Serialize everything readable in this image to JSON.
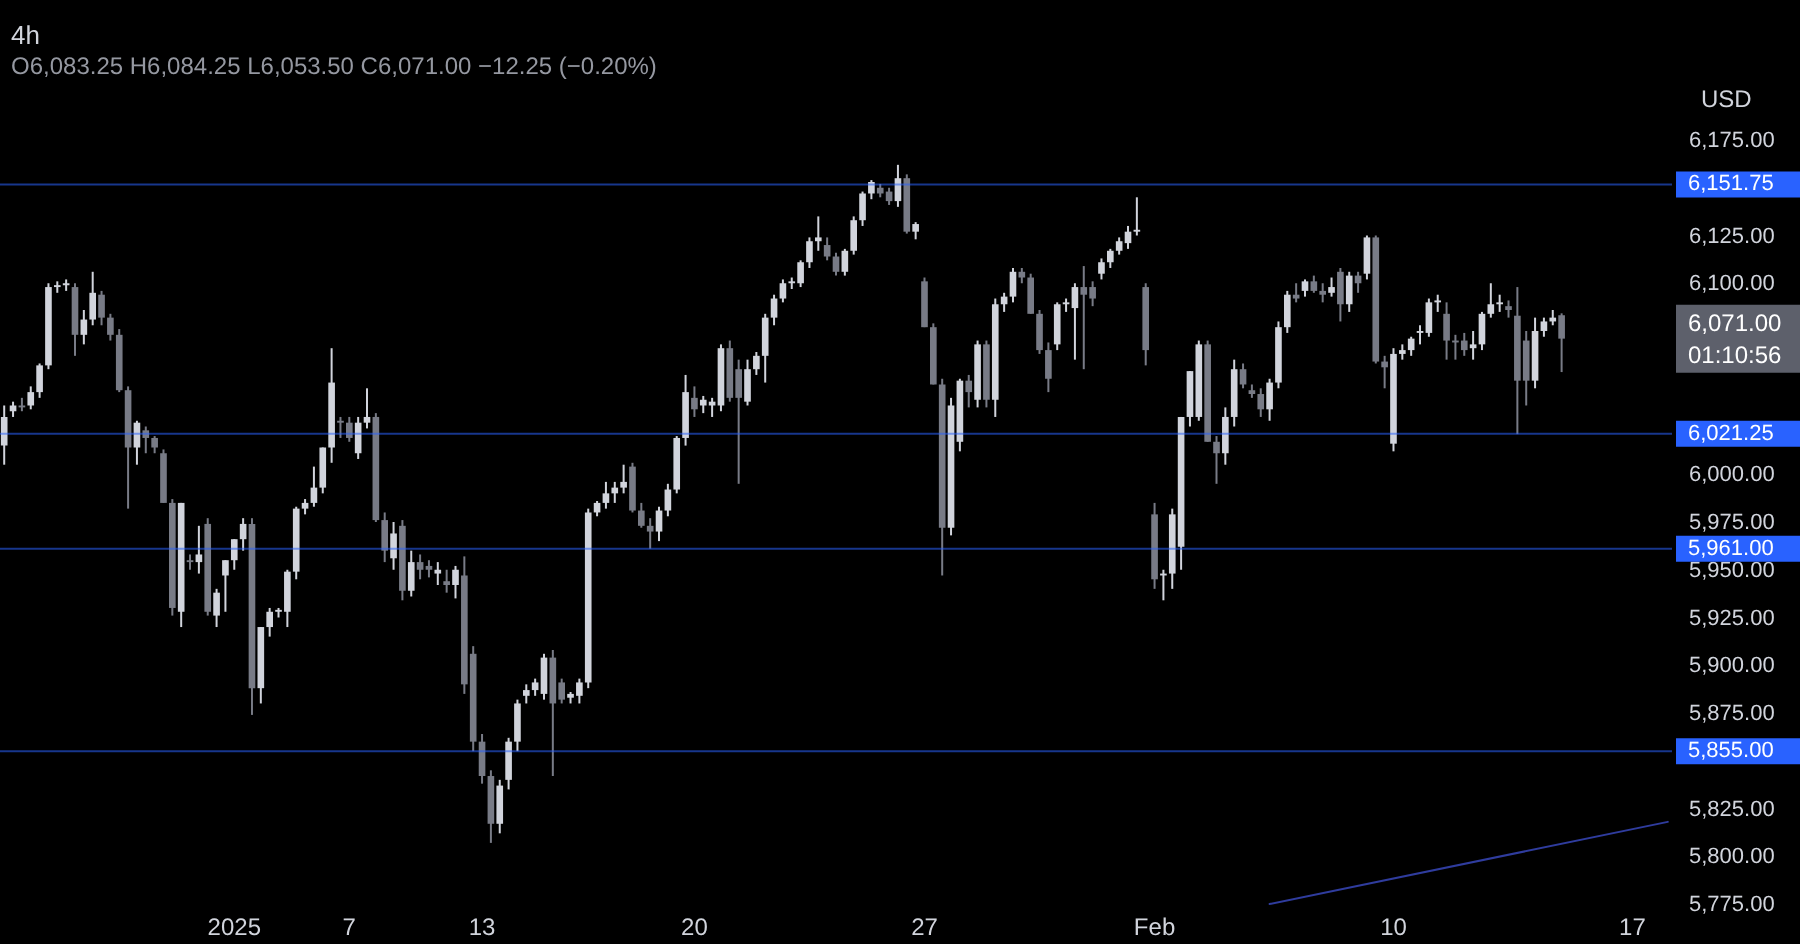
{
  "chart_data": {
    "type": "candlestick",
    "title": "4h",
    "subtitle": "O6,083.25 H6,084.25 L6,053.50 C6,071.00 −12.25 (−0.20%)",
    "ylabel": "USD",
    "categories": [
      null,
      null,
      null,
      null,
      null,
      null,
      null,
      null,
      null,
      null,
      null,
      null,
      null,
      null,
      null,
      null,
      null,
      null,
      null,
      null,
      null,
      null,
      null,
      null,
      null,
      null,
      "2025",
      null,
      null,
      null,
      null,
      null,
      null,
      null,
      null,
      null,
      null,
      null,
      null,
      "7",
      null,
      null,
      null,
      null,
      null,
      null,
      null,
      null,
      null,
      null,
      null,
      null,
      null,
      null,
      "13",
      null,
      null,
      null,
      null,
      null,
      null,
      null,
      null,
      null,
      null,
      null,
      null,
      null,
      null,
      null,
      null,
      null,
      null,
      null,
      null,
      null,
      null,
      null,
      "20",
      null,
      null,
      null,
      null,
      null,
      null,
      null,
      null,
      null,
      null,
      null,
      null,
      null,
      null,
      null,
      null,
      null,
      null,
      null,
      null,
      null,
      null,
      null,
      null,
      null,
      "27",
      null,
      null,
      null,
      null,
      null,
      null,
      null,
      null,
      null,
      null,
      null,
      null,
      null,
      null,
      null,
      null,
      null,
      null,
      null,
      null,
      null,
      null,
      null,
      null,
      null,
      "Feb",
      null,
      null,
      null,
      null,
      null,
      null,
      null,
      null,
      null,
      null,
      null,
      null,
      null,
      null,
      null,
      null,
      null,
      null,
      null,
      null,
      null,
      null,
      null,
      null,
      null,
      null,
      "10",
      null,
      null,
      null,
      null,
      null,
      null,
      null,
      null,
      null,
      null,
      null,
      null,
      null,
      null,
      null,
      null,
      null,
      null,
      null,
      null,
      null,
      null,
      null,
      null,
      null,
      null,
      "17",
      null,
      null,
      null,
      null
    ],
    "ohlc": [
      [
        6015,
        6036,
        6005,
        6030
      ],
      [
        6033,
        6038,
        6030,
        6036
      ],
      [
        6036,
        6040,
        6033,
        6035
      ],
      [
        6036,
        6046,
        6034,
        6043
      ],
      [
        6043,
        6058,
        6040,
        6057
      ],
      [
        6057,
        6100,
        6055,
        6098
      ],
      [
        6098,
        6101,
        6095,
        6099
      ],
      [
        6099,
        6102,
        6096,
        6100
      ],
      [
        6098,
        6100,
        6062,
        6073
      ],
      [
        6073,
        6086,
        6068,
        6081
      ],
      [
        6081,
        6106,
        6078,
        6095
      ],
      [
        6094,
        6096,
        6078,
        6082
      ],
      [
        6082,
        6084,
        6070,
        6073
      ],
      [
        6073,
        6076,
        6043,
        6044
      ],
      [
        6044,
        6046,
        5982,
        6014
      ],
      [
        6014,
        6028,
        6005,
        6027
      ],
      [
        6023,
        6025,
        6011,
        6019
      ],
      [
        6019,
        6020,
        6011,
        6014
      ],
      [
        6011,
        6013,
        5985,
        5985
      ],
      [
        5985,
        5987,
        5926,
        5930
      ],
      [
        5928,
        5985,
        5920,
        5985
      ],
      [
        5955,
        5958,
        5950,
        5954
      ],
      [
        5954,
        5973,
        5948,
        5958
      ],
      [
        5974,
        5977,
        5926,
        5928
      ],
      [
        5926,
        5940,
        5920,
        5938
      ],
      [
        5947,
        5955,
        5928,
        5955
      ],
      [
        5955,
        5966,
        5950,
        5966
      ],
      [
        5966,
        5977,
        5960,
        5974
      ],
      [
        5974,
        5977,
        5874,
        5888
      ],
      [
        5888,
        5920,
        5880,
        5920
      ],
      [
        5920,
        5930,
        5915,
        5928
      ],
      [
        5928,
        5930,
        5925,
        5929
      ],
      [
        5928,
        5950,
        5920,
        5949
      ],
      [
        5949,
        5983,
        5945,
        5982
      ],
      [
        5982,
        5987,
        5979,
        5985
      ],
      [
        5985,
        6004,
        5983,
        5993
      ],
      [
        5993,
        6014,
        5990,
        6014
      ],
      [
        6014,
        6066,
        6006,
        6048
      ],
      [
        6028,
        6030,
        6019,
        6027
      ],
      [
        6027,
        6030,
        6017,
        6019
      ],
      [
        6011,
        6030,
        6008,
        6027
      ],
      [
        6027,
        6045,
        6024,
        6030
      ],
      [
        6030,
        6032,
        5975,
        5976
      ],
      [
        5976,
        5980,
        5954,
        5960
      ],
      [
        5956,
        5975,
        5950,
        5969
      ],
      [
        5973,
        5976,
        5934,
        5939
      ],
      [
        5939,
        5960,
        5936,
        5954
      ],
      [
        5954,
        5958,
        5945,
        5950
      ],
      [
        5952,
        5955,
        5946,
        5950
      ],
      [
        5948,
        5954,
        5942,
        5950
      ],
      [
        5944,
        5950,
        5938,
        5942
      ],
      [
        5942,
        5952,
        5935,
        5950
      ],
      [
        5947,
        5957,
        5885,
        5890
      ],
      [
        5906,
        5910,
        5855,
        5860
      ],
      [
        5860,
        5864,
        5838,
        5842
      ],
      [
        5842,
        5845,
        5807,
        5817
      ],
      [
        5817,
        5840,
        5812,
        5837
      ],
      [
        5840,
        5862,
        5835,
        5860
      ],
      [
        5860,
        5882,
        5855,
        5880
      ],
      [
        5884,
        5890,
        5880,
        5887
      ],
      [
        5887,
        5893,
        5884,
        5891
      ],
      [
        5885,
        5906,
        5882,
        5904
      ],
      [
        5904,
        5908,
        5842,
        5880
      ],
      [
        5891,
        5893,
        5880,
        5882
      ],
      [
        5883,
        5886,
        5880,
        5885
      ],
      [
        5884,
        5893,
        5880,
        5891
      ],
      [
        5891,
        5982,
        5888,
        5980
      ],
      [
        5980,
        5986,
        5978,
        5985
      ],
      [
        5985,
        5996,
        5982,
        5990
      ],
      [
        5990,
        5996,
        5985,
        5993
      ],
      [
        5993,
        6005,
        5990,
        5996
      ],
      [
        6004,
        6006,
        5980,
        5981
      ],
      [
        5981,
        5985,
        5972,
        5973
      ],
      [
        5973,
        5977,
        5961,
        5970
      ],
      [
        5970,
        5983,
        5965,
        5981
      ],
      [
        5981,
        5995,
        5978,
        5992
      ],
      [
        5992,
        6020,
        5990,
        6019
      ],
      [
        6019,
        6052,
        6015,
        6043
      ],
      [
        6040,
        6046,
        6030,
        6034
      ],
      [
        6036,
        6041,
        6032,
        6039
      ],
      [
        6036,
        6040,
        6030,
        6038
      ],
      [
        6036,
        6068,
        6033,
        6066
      ],
      [
        6066,
        6070,
        6038,
        6040
      ],
      [
        6055,
        6060,
        5995,
        6040
      ],
      [
        6038,
        6060,
        6036,
        6055
      ],
      [
        6055,
        6064,
        6052,
        6062
      ],
      [
        6062,
        6084,
        6048,
        6082
      ],
      [
        6082,
        6094,
        6078,
        6092
      ],
      [
        6092,
        6102,
        6090,
        6100
      ],
      [
        6100,
        6103,
        6097,
        6101
      ],
      [
        6100,
        6112,
        6098,
        6111
      ],
      [
        6111,
        6124,
        6108,
        6122
      ],
      [
        6122,
        6135,
        6117,
        6124
      ],
      [
        6120,
        6124,
        6112,
        6114
      ],
      [
        6114,
        6116,
        6104,
        6106
      ],
      [
        6106,
        6118,
        6104,
        6117
      ],
      [
        6117,
        6135,
        6115,
        6133
      ],
      [
        6133,
        6148,
        6130,
        6147
      ],
      [
        6147,
        6154,
        6144,
        6153
      ],
      [
        6150,
        6152,
        6145,
        6147
      ],
      [
        6148,
        6150,
        6141,
        6143
      ],
      [
        6143,
        6162,
        6140,
        6155
      ],
      [
        6155,
        6157,
        6126,
        6127
      ],
      [
        6127,
        6132,
        6123,
        6131
      ],
      [
        6101,
        6103,
        6077,
        6077
      ],
      [
        6077,
        6079,
        6047,
        6047
      ],
      [
        6047,
        6050,
        5947,
        5972
      ],
      [
        5972,
        6040,
        5968,
        6036
      ],
      [
        6017,
        6050,
        6012,
        6049
      ],
      [
        6049,
        6052,
        6035,
        6043
      ],
      [
        6039,
        6070,
        6035,
        6068
      ],
      [
        6068,
        6070,
        6035,
        6039
      ],
      [
        6039,
        6092,
        6030,
        6089
      ],
      [
        6089,
        6095,
        6085,
        6093
      ],
      [
        6093,
        6108,
        6090,
        6106
      ],
      [
        6106,
        6108,
        6100,
        6103
      ],
      [
        6103,
        6105,
        6084,
        6084
      ],
      [
        6084,
        6086,
        6063,
        6065
      ],
      [
        6065,
        6069,
        6043,
        6050
      ],
      [
        6068,
        6090,
        6065,
        6089
      ],
      [
        6089,
        6092,
        6085,
        6090
      ],
      [
        6087,
        6100,
        6060,
        6098
      ],
      [
        6098,
        6109,
        6055,
        6094
      ],
      [
        6098,
        6101,
        6088,
        6092
      ],
      [
        6105,
        6113,
        6102,
        6111
      ],
      [
        6111,
        6118,
        6108,
        6117
      ],
      [
        6117,
        6124,
        6115,
        6122
      ],
      [
        6121,
        6130,
        6118,
        6127
      ],
      [
        6127,
        6145,
        6125,
        6128
      ],
      [
        6098,
        6100,
        6057,
        6065
      ],
      [
        5979,
        5985,
        5940,
        5945
      ],
      [
        5947,
        5950,
        5934,
        5948
      ],
      [
        5948,
        5982,
        5940,
        5979
      ],
      [
        5962,
        6030,
        5950,
        6030
      ],
      [
        6030,
        6054,
        6025,
        6054
      ],
      [
        6030,
        6070,
        6028,
        6068
      ],
      [
        6068,
        6070,
        6017,
        6017
      ],
      [
        6017,
        6020,
        5995,
        6011
      ],
      [
        6011,
        6035,
        6005,
        6030
      ],
      [
        6030,
        6060,
        6025,
        6055
      ],
      [
        6055,
        6058,
        6045,
        6047
      ],
      [
        6044,
        6047,
        6040,
        6042
      ],
      [
        6042,
        6045,
        6030,
        6034
      ],
      [
        6034,
        6050,
        6028,
        6048
      ],
      [
        6048,
        6080,
        6045,
        6077
      ],
      [
        6077,
        6096,
        6074,
        6094
      ],
      [
        6094,
        6100,
        6090,
        6092
      ],
      [
        6096,
        6102,
        6093,
        6101
      ],
      [
        6101,
        6104,
        6095,
        6096
      ],
      [
        6096,
        6100,
        6090,
        6094
      ],
      [
        6095,
        6103,
        6093,
        6098
      ],
      [
        6106,
        6108,
        6080,
        6089
      ],
      [
        6089,
        6106,
        6085,
        6104
      ],
      [
        6104,
        6106,
        6095,
        6100
      ],
      [
        6105,
        6125,
        6102,
        6124
      ],
      [
        6124,
        6125,
        6058,
        6059
      ],
      [
        6059,
        6062,
        6045,
        6056
      ],
      [
        6016,
        6066,
        6012,
        6063
      ],
      [
        6063,
        6068,
        6060,
        6065
      ],
      [
        6065,
        6072,
        6062,
        6071
      ],
      [
        6074,
        6078,
        6068,
        6075
      ],
      [
        6074,
        6092,
        6072,
        6090
      ],
      [
        6090,
        6094,
        6085,
        6091
      ],
      [
        6084,
        6090,
        6060,
        6070
      ],
      [
        6070,
        6073,
        6060,
        6069
      ],
      [
        6070,
        6074,
        6062,
        6065
      ],
      [
        6066,
        6075,
        6060,
        6068
      ],
      [
        6068,
        6085,
        6065,
        6084
      ],
      [
        6084,
        6100,
        6082,
        6089
      ],
      [
        6089,
        6094,
        6085,
        6090
      ],
      [
        6088,
        6091,
        6082,
        6086
      ],
      [
        6083,
        6098,
        6021,
        6049
      ],
      [
        6070,
        6075,
        6036,
        6049
      ],
      [
        6049,
        6082,
        6045,
        6075
      ],
      [
        6075,
        6082,
        6072,
        6080
      ],
      [
        6080,
        6086,
        6078,
        6082
      ],
      [
        6083.25,
        6084.25,
        6053.5,
        6071
      ],
      null,
      null,
      null,
      null,
      null,
      null,
      null,
      null,
      null,
      null,
      null,
      null
    ],
    "colors": [
      "#d1d4dc",
      "#d1d4dc",
      "#787b86",
      "#d1d4dc",
      "#d1d4dc",
      "#d1d4dc",
      "#d1d4dc",
      "#d1d4dc",
      "#787b86",
      "#d1d4dc",
      "#d1d4dc",
      "#787b86",
      "#787b86",
      "#787b86",
      "#787b86",
      "#d1d4dc",
      "#787b86",
      "#787b86",
      "#787b86",
      "#787b86",
      "#d1d4dc",
      "#787b86",
      "#d1d4dc",
      "#787b86",
      "#d1d4dc",
      "#d1d4dc",
      "#d1d4dc",
      "#d1d4dc",
      "#787b86",
      "#d1d4dc",
      "#d1d4dc",
      "#d1d4dc",
      "#d1d4dc",
      "#d1d4dc",
      "#d1d4dc",
      "#d1d4dc",
      "#d1d4dc",
      "#d1d4dc",
      "#787b86",
      "#787b86",
      "#d1d4dc",
      "#d1d4dc",
      "#787b86",
      "#787b86",
      "#d1d4dc",
      "#787b86",
      "#d1d4dc",
      "#787b86",
      "#787b86",
      "#d1d4dc",
      "#787b86",
      "#d1d4dc",
      "#787b86",
      "#787b86",
      "#787b86",
      "#787b86",
      "#d1d4dc",
      "#d1d4dc",
      "#d1d4dc",
      "#d1d4dc",
      "#d1d4dc",
      "#d1d4dc",
      "#787b86",
      "#787b86",
      "#d1d4dc",
      "#d1d4dc",
      "#d1d4dc",
      "#d1d4dc",
      "#d1d4dc",
      "#d1d4dc",
      "#d1d4dc",
      "#787b86",
      "#787b86",
      "#787b86",
      "#d1d4dc",
      "#d1d4dc",
      "#d1d4dc",
      "#d1d4dc",
      "#787b86",
      "#d1d4dc",
      "#d1d4dc",
      "#d1d4dc",
      "#787b86",
      "#787b86",
      "#d1d4dc",
      "#d1d4dc",
      "#d1d4dc",
      "#d1d4dc",
      "#d1d4dc",
      "#d1d4dc",
      "#d1d4dc",
      "#d1d4dc",
      "#d1d4dc",
      "#787b86",
      "#787b86",
      "#d1d4dc",
      "#d1d4dc",
      "#d1d4dc",
      "#d1d4dc",
      "#787b86",
      "#787b86",
      "#d1d4dc",
      "#787b86",
      "#d1d4dc",
      "#787b86",
      "#787b86",
      "#787b86",
      "#d1d4dc",
      "#d1d4dc",
      "#787b86",
      "#d1d4dc",
      "#787b86",
      "#d1d4dc",
      "#d1d4dc",
      "#d1d4dc",
      "#787b86",
      "#787b86",
      "#787b86",
      "#787b86",
      "#d1d4dc",
      "#d1d4dc",
      "#d1d4dc",
      "#787b86",
      "#787b86",
      "#d1d4dc",
      "#d1d4dc",
      "#d1d4dc",
      "#d1d4dc",
      "#d1d4dc",
      "#787b86",
      "#787b86",
      "#d1d4dc",
      "#d1d4dc",
      "#d1d4dc",
      "#d1d4dc",
      "#d1d4dc",
      "#787b86",
      "#787b86",
      "#d1d4dc",
      "#d1d4dc",
      "#787b86",
      "#787b86",
      "#787b86",
      "#d1d4dc",
      "#d1d4dc",
      "#d1d4dc",
      "#787b86",
      "#d1d4dc",
      "#787b86",
      "#787b86",
      "#d1d4dc",
      "#787b86",
      "#d1d4dc",
      "#787b86",
      "#d1d4dc",
      "#787b86",
      "#787b86",
      "#d1d4dc",
      "#d1d4dc",
      "#d1d4dc",
      "#d1d4dc",
      "#d1d4dc",
      "#d1d4dc",
      "#787b86",
      "#787b86",
      "#787b86",
      "#d1d4dc",
      "#d1d4dc",
      "#d1d4dc",
      "#d1d4dc",
      "#787b86",
      "#787b86",
      "#787b86",
      "#d1d4dc",
      "#d1d4dc",
      "#d1d4dc",
      "#787b86",
      null,
      null,
      null,
      null,
      null,
      null,
      null,
      null,
      null,
      null,
      null,
      null
    ],
    "series": [
      {
        "type": "line",
        "color": "#2f3c9e",
        "values": [
          null,
          null,
          null,
          null,
          null,
          null,
          null,
          null,
          null,
          null,
          null,
          null,
          null,
          null,
          null,
          null,
          null,
          null,
          null,
          null,
          null,
          null,
          null,
          null,
          null,
          null,
          null,
          null,
          null,
          null,
          null,
          null,
          null,
          null,
          null,
          null,
          null,
          null,
          null,
          null,
          null,
          null,
          null,
          null,
          null,
          null,
          null,
          null,
          null,
          null,
          null,
          null,
          null,
          null,
          null,
          null,
          null,
          null,
          null,
          null,
          null,
          null,
          null,
          null,
          null,
          null,
          null,
          null,
          null,
          null,
          null,
          null,
          null,
          null,
          null,
          null,
          null,
          null,
          null,
          null,
          null,
          null,
          null,
          null,
          null,
          null,
          null,
          null,
          null,
          null,
          null,
          null,
          null,
          null,
          null,
          null,
          null,
          null,
          null,
          null,
          null,
          null,
          null,
          null,
          null,
          null,
          null,
          null,
          null,
          null,
          null,
          null,
          null,
          null,
          null,
          null,
          null,
          null,
          null,
          null,
          null,
          null,
          null,
          null,
          null,
          null,
          null,
          null,
          null,
          null,
          null,
          null,
          null,
          null,
          null,
          null,
          null,
          null,
          null,
          null,
          null,
          null,
          null,
          5775,
          null,
          null,
          null,
          null,
          null,
          null,
          null,
          null,
          null,
          null,
          null,
          null,
          null,
          null,
          null,
          null,
          null,
          null,
          null,
          null,
          null,
          null,
          null,
          null,
          null,
          null,
          null,
          null,
          null,
          null,
          null,
          null,
          null,
          null,
          null,
          null,
          null,
          null,
          null,
          null,
          null,
          null,
          null,
          null,
          5818
        ]
      }
    ],
    "ylim": [
      5775,
      6175
    ],
    "yticks": [
      {
        "value": 5775,
        "label": "5,775.00"
      },
      {
        "value": 5800,
        "label": "5,800.00"
      },
      {
        "value": 5825,
        "label": "5,825.00"
      },
      {
        "value": 5875,
        "label": "5,875.00"
      },
      {
        "value": 5900,
        "label": "5,900.00"
      },
      {
        "value": 5925,
        "label": "5,925.00"
      },
      {
        "value": 5950,
        "label": "5,950.00"
      },
      {
        "value": 5975,
        "label": "5,975.00"
      },
      {
        "value": 6000,
        "label": "6,000.00"
      },
      {
        "value": 6100,
        "label": "6,100.00"
      },
      {
        "value": 6125,
        "label": "6,125.00"
      },
      {
        "value": 6175,
        "label": "6,175.00"
      }
    ],
    "ref_lines": [
      {
        "axis": "y",
        "value": 6151.75,
        "label": "6,151.75",
        "color": "#2962ff"
      },
      {
        "axis": "y",
        "value": 6021.25,
        "label": "6,021.25",
        "color": "#2962ff"
      },
      {
        "axis": "y",
        "value": 5961,
        "label": "5,961.00",
        "color": "#2962ff"
      },
      {
        "axis": "y",
        "value": 5855,
        "label": "5,855.00",
        "color": "#2962ff"
      }
    ],
    "annotations": [
      "6,071.00",
      "01:10:56"
    ],
    "grid": false
  }
}
